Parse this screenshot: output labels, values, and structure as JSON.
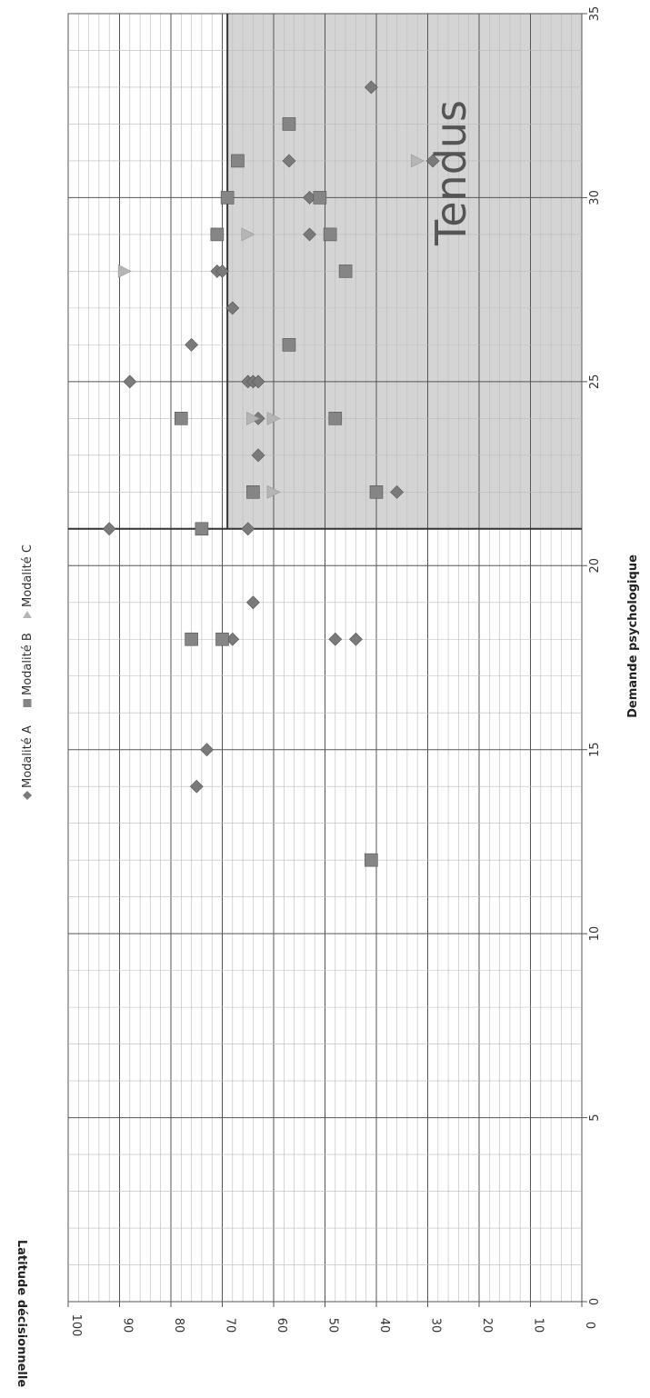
{
  "chart_data": {
    "type": "scatter",
    "title": "",
    "xlabel": "Demande psychologique",
    "ylabel": "Latitude décisionnelle",
    "xlim": [
      0,
      35
    ],
    "ylim": [
      0,
      100
    ],
    "x_ticks": [
      "0",
      "5",
      "10",
      "15",
      "20",
      "25",
      "30",
      "35"
    ],
    "y_ticks": [
      "0",
      "10",
      "20",
      "30",
      "40",
      "50",
      "60",
      "70",
      "80",
      "90",
      "100"
    ],
    "grid": true,
    "legend_position": "top",
    "quadrant": {
      "label": "Tendus",
      "x_threshold": 21,
      "y_threshold": 69,
      "fill": "#d4d4d4"
    },
    "series": [
      {
        "name": "Modalité A",
        "marker": "diamond",
        "color": "#7a7a7a",
        "points": [
          [
            14,
            75
          ],
          [
            15,
            73
          ],
          [
            18,
            68
          ],
          [
            18,
            48
          ],
          [
            18,
            44
          ],
          [
            19,
            64
          ],
          [
            21,
            92
          ],
          [
            21,
            65
          ],
          [
            22,
            64
          ],
          [
            22,
            36
          ],
          [
            23,
            63
          ],
          [
            24,
            63
          ],
          [
            25,
            88
          ],
          [
            25,
            65
          ],
          [
            25,
            64
          ],
          [
            25,
            63
          ],
          [
            26,
            76
          ],
          [
            27,
            68
          ],
          [
            28,
            71
          ],
          [
            28,
            70
          ],
          [
            29,
            53
          ],
          [
            30,
            53
          ],
          [
            31,
            57
          ],
          [
            31,
            29
          ],
          [
            33,
            41
          ]
        ]
      },
      {
        "name": "Modalité B",
        "marker": "square",
        "color": "#858585",
        "points": [
          [
            12,
            41
          ],
          [
            18,
            76
          ],
          [
            18,
            70
          ],
          [
            21,
            74
          ],
          [
            22,
            64
          ],
          [
            22,
            40
          ],
          [
            24,
            78
          ],
          [
            24,
            48
          ],
          [
            26,
            57
          ],
          [
            28,
            46
          ],
          [
            29,
            71
          ],
          [
            29,
            49
          ],
          [
            30,
            69
          ],
          [
            30,
            51
          ],
          [
            31,
            67
          ],
          [
            32,
            57
          ]
        ]
      },
      {
        "name": "Modalité C",
        "marker": "triangle",
        "color": "#b5b5b5",
        "points": [
          [
            22,
            60
          ],
          [
            24,
            64
          ],
          [
            24,
            60
          ],
          [
            29,
            65
          ],
          [
            28,
            89
          ],
          [
            31,
            32
          ]
        ]
      }
    ]
  }
}
